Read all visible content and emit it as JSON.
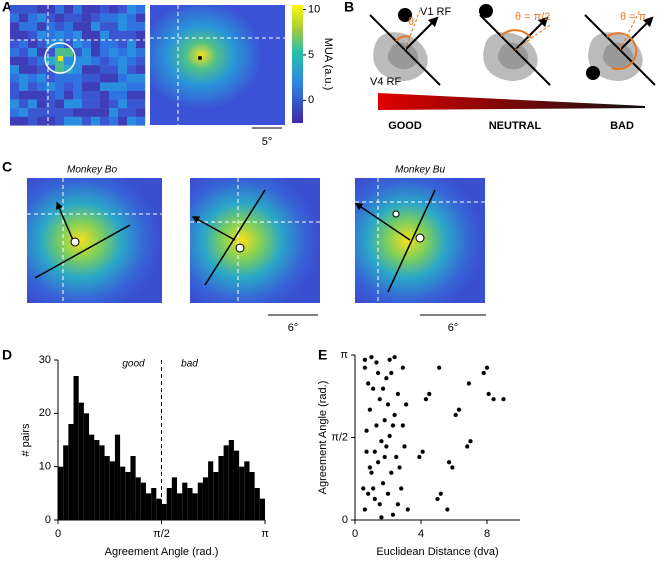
{
  "panel_labels": [
    "A",
    "B",
    "C",
    "D",
    "E"
  ],
  "panel_a": {
    "colorbar_label": "MUA (a.u.)",
    "clim": [
      -2.5,
      10.5
    ],
    "colorbar_ticks": [
      0,
      5,
      10
    ],
    "scale_label": "5°"
  },
  "panel_b": {
    "v1_label": "V1 RF",
    "v4_label": "V4 RF",
    "angle_labels": [
      "θ",
      "θ = π/2",
      "θ = π"
    ],
    "gradient_labels": [
      "GOOD",
      "NEUTRAL",
      "BAD"
    ]
  },
  "panel_c": {
    "titles": [
      "Monkey Bo",
      "Monkey Bu"
    ],
    "scale_labels": [
      "6°",
      "6°"
    ]
  },
  "chart_data": [
    {
      "type": "histogram",
      "xlabel": "Agreement Angle (rad.)",
      "ylabel": "# pairs",
      "annotations": [
        "good",
        "bad"
      ],
      "divider": 1.5708,
      "color": "#000000",
      "bins": [
        0,
        0.0785,
        0.1571,
        0.2356,
        0.3142,
        0.3927,
        0.4712,
        0.5498,
        0.6283,
        0.7069,
        0.7854,
        0.8639,
        0.9425,
        1.021,
        1.0996,
        1.1781,
        1.2566,
        1.3352,
        1.4137,
        1.4923,
        1.5708,
        1.6493,
        1.7279,
        1.8064,
        1.885,
        1.9635,
        2.042,
        2.1206,
        2.1991,
        2.2777,
        2.3562,
        2.4347,
        2.5133,
        2.5918,
        2.6704,
        2.7489,
        2.8274,
        2.906,
        2.9845,
        3.0631,
        3.1416
      ],
      "values": [
        10,
        14,
        18,
        27,
        22,
        20,
        16,
        15,
        14,
        12,
        11,
        16,
        10,
        9,
        12,
        8,
        7,
        5,
        6,
        4,
        3,
        6,
        8,
        5,
        7,
        6,
        5,
        7,
        8,
        11,
        9,
        12,
        14,
        15,
        13,
        10,
        11,
        9,
        6,
        4
      ],
      "xlim": [
        0,
        3.1416
      ],
      "xticks": [
        0,
        {
          "value": 1.5708,
          "label": "π/2"
        },
        {
          "value": 3.1416,
          "label": "π"
        }
      ],
      "ylim": [
        0,
        30
      ],
      "yticks": [
        0,
        10,
        20,
        30
      ]
    },
    {
      "type": "scatter",
      "xlabel": "Euclidean Distance (dva)",
      "ylabel": "Agreement Angle (rad.)",
      "color": "#000000",
      "x": [
        0.6,
        0.8,
        1.0,
        1.2,
        0.7,
        0.9,
        1.1,
        0.6,
        1.3,
        1.5,
        1.7,
        1.4,
        1.6,
        1.8,
        1.5,
        1.9,
        2.1,
        2.3,
        2.0,
        2.2,
        2.5,
        2.1,
        2.4,
        2.6,
        2.2,
        2.8,
        2.7,
        3.0,
        2.9,
        3.1,
        0.5,
        0.9,
        1.2,
        1.6,
        1.8,
        2.0,
        0.8,
        1.4,
        1.0,
        2.4,
        1.7,
        1.3,
        0.7,
        2.6,
        3.2,
        2.9,
        1.9,
        1.1,
        2.3,
        0.6,
        3.9,
        4.1,
        4.3,
        4.5,
        5.0,
        5.2,
        5.1,
        5.7,
        5.9,
        5.6,
        6.1,
        6.3,
        6.8,
        7.0,
        6.9,
        7.8,
        8.0,
        8.1,
        8.4,
        9.0
      ],
      "y": [
        0.2,
        0.5,
        0.9,
        1.3,
        1.7,
        2.1,
        2.5,
        2.9,
        3.0,
        0.3,
        0.7,
        1.1,
        1.5,
        1.9,
        2.3,
        2.7,
        3.05,
        0.1,
        0.5,
        0.9,
        1.2,
        1.6,
        2.0,
        2.4,
        2.8,
        0.6,
        1.0,
        1.4,
        1.8,
        2.2,
        0.6,
        1.0,
        0.4,
        0.05,
        1.2,
        2.2,
        2.6,
        2.8,
        3.1,
        3.1,
        2.5,
        1.8,
        1.3,
        0.3,
        0.2,
        2.9,
        1.4,
        0.6,
        1.8,
        3.05,
        1.2,
        1.3,
        2.3,
        2.4,
        0.4,
        0.5,
        2.9,
        1.1,
        1.0,
        0.2,
        2.0,
        2.1,
        1.4,
        1.5,
        2.6,
        2.8,
        2.9,
        2.4,
        2.3,
        2.3
      ],
      "xlim": [
        0,
        10
      ],
      "xticks": [
        0,
        4,
        8
      ],
      "ylim": [
        0,
        3.1416
      ],
      "yticks": [
        0,
        {
          "value": 1.5708,
          "label": "π/2"
        },
        {
          "value": 3.1416,
          "label": "π"
        }
      ]
    }
  ]
}
